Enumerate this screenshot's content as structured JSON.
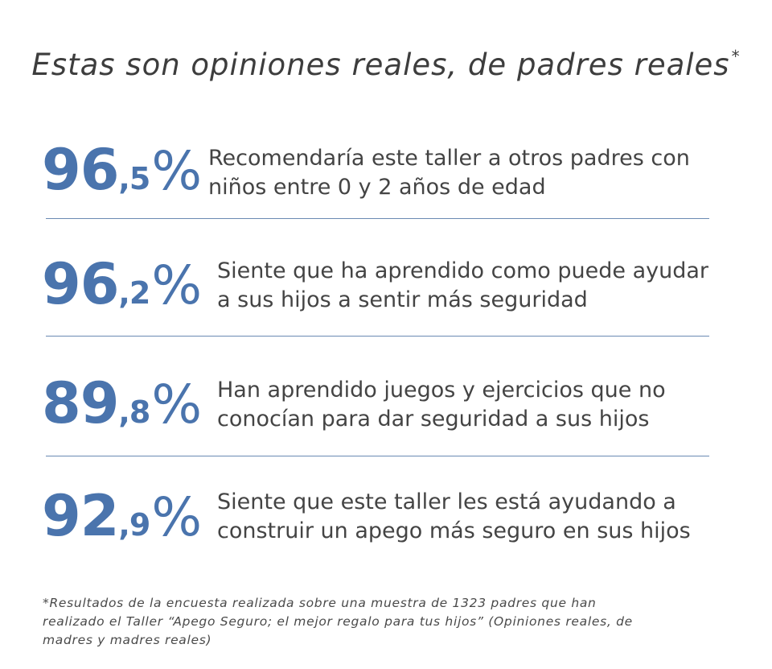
{
  "title": {
    "text": "Estas son opiniones reales, de padres reales",
    "asterisk": "*"
  },
  "stats": [
    {
      "integer": "96",
      "decimal": ",5",
      "percent": "%",
      "lines": [
        "Recomendaría este taller a otros padres con",
        "niños entre 0 y 2 años de edad"
      ]
    },
    {
      "integer": "96",
      "decimal": ",2",
      "percent": "%",
      "lines": [
        "Siente que ha aprendido como puede ayudar",
        "a sus hijos a sentir más seguridad"
      ]
    },
    {
      "integer": "89",
      "decimal": ",8",
      "percent": "%",
      "lines": [
        "Han aprendido juegos y ejercicios que no",
        "conocían para dar seguridad a sus hijos"
      ]
    },
    {
      "integer": "92",
      "decimal": ",9",
      "percent": "%",
      "lines": [
        "Siente que este taller les está ayudando a",
        "construir un apego más seguro en sus hijos"
      ]
    }
  ],
  "footnote": {
    "lines": [
      "*Resultados de la encuesta realizada sobre una muestra de 1323 padres que han",
      "realizado el Taller “Apego Seguro; el mejor regalo para tus hijos” (Opiniones reales, de",
      "madres y madres reales)"
    ]
  },
  "colors": {
    "accent": "#4a74ad",
    "text": "#444444",
    "divider": "#6a8ab3"
  }
}
